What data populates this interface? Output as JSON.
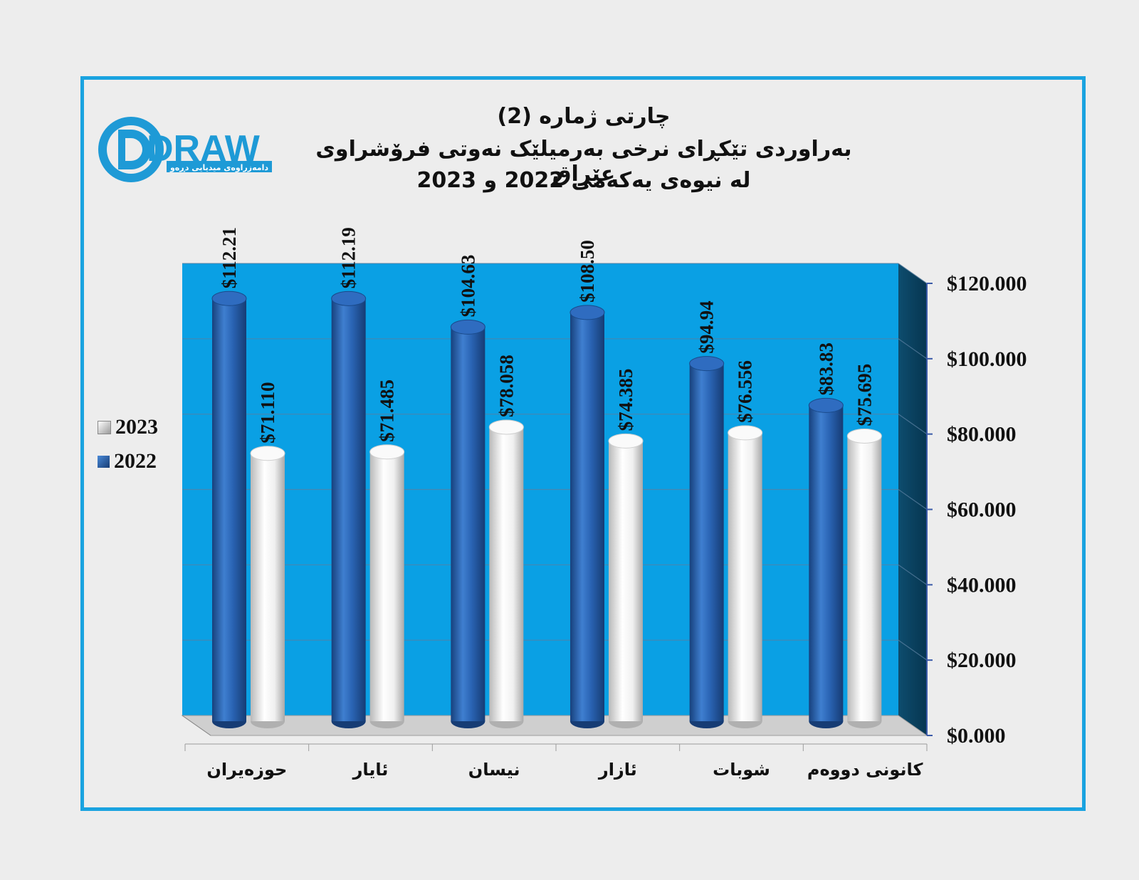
{
  "title": {
    "line1": "چارتی ژماره (2)",
    "line2": "بەراوردی تێکڕای نرخی بەرمیلێک نەوتی فرۆشراوی عێراق",
    "line3": "لە نیوەی یەکەمی 2022 و 2023"
  },
  "logo": {
    "text": "DRAW",
    "subtitle": "دامەزراوەی میدیایی دڕەو"
  },
  "colors": {
    "frame": "#1aa3e0",
    "plot_bg": "#0aa0e4",
    "series_2022": "#2a64b4",
    "series_2023": "#f2f2f2",
    "page_bg": "#ededed"
  },
  "chart_data": {
    "type": "bar",
    "categories": [
      "حوزەیران",
      "ئایار",
      "نیسان",
      "ئازار",
      "شوبات",
      "کانونی دووەم"
    ],
    "series": [
      {
        "name": "2022",
        "values": [
          112.21,
          112.19,
          104.63,
          108.5,
          94.94,
          83.83
        ],
        "labels": [
          "$112.21",
          "$112.19",
          "$104.63",
          "$108.50",
          "$94.94",
          "$83.83"
        ]
      },
      {
        "name": "2023",
        "values": [
          71.11,
          71.485,
          78.058,
          74.385,
          76.556,
          75.695
        ],
        "labels": [
          "$71.110",
          "$71.485",
          "$78.058",
          "$74.385",
          "$76.556",
          "$75.695"
        ]
      }
    ],
    "ylim": [
      0,
      120
    ],
    "yticks": [
      0,
      20,
      40,
      60,
      80,
      100,
      120
    ],
    "ytick_labels": [
      "$0.000",
      "$20.000",
      "$40.000",
      "$60.000",
      "$80.000",
      "$100.000",
      "$120.000"
    ],
    "y_axis_position": "right",
    "legend": {
      "placement": "left",
      "entries": [
        "2023",
        "2022"
      ]
    },
    "grid": true,
    "style": "3d-cylinder"
  }
}
